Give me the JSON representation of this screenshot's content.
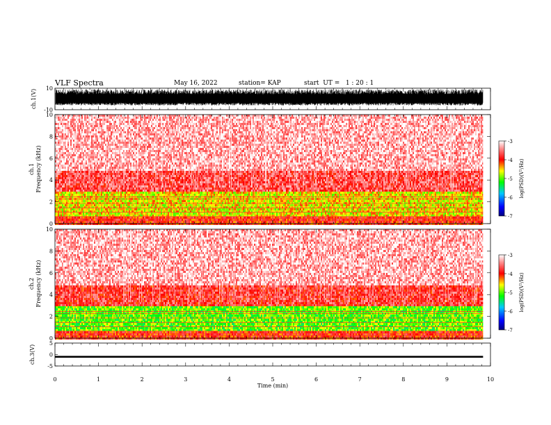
{
  "header": {
    "title": "VLF Spectra",
    "date": "May 16, 2022",
    "station": "station= KAP",
    "start": "start  UT =   1 : 20 : 1"
  },
  "chart_data": [
    {
      "type": "line",
      "name": "waveform-ch1",
      "ylabel": "ch.1(V)",
      "ylim": [
        -10,
        10
      ],
      "yticks": [
        "10",
        "-10"
      ],
      "xlim": [
        0,
        10
      ],
      "data_end_min": 9.83,
      "typical_range": [
        -6,
        9
      ]
    },
    {
      "type": "heatmap",
      "name": "spectrogram-ch1",
      "ylabel": "ch.1 Frequency (kHz)",
      "ylim": [
        0,
        10
      ],
      "yticks": [
        "0",
        "2",
        "4",
        "6",
        "8",
        "10"
      ],
      "xlim": [
        0,
        10
      ],
      "data_end_min": 9.83,
      "bands": [
        {
          "from_khz": 0,
          "to_khz": 0.8,
          "log_psd": -4.0
        },
        {
          "from_khz": 0.8,
          "to_khz": 3.0,
          "log_psd": -4.6
        },
        {
          "from_khz": 3.0,
          "to_khz": 5.0,
          "log_psd": -3.7
        },
        {
          "from_khz": 5.0,
          "to_khz": 10.0,
          "log_psd": -3.3
        }
      ],
      "colorbar": {
        "label": "log(PSD)(V²/Hz)",
        "ticks": [
          "-3",
          "-4",
          "-5",
          "-6",
          "-7"
        ],
        "range": [
          -7,
          -3
        ]
      }
    },
    {
      "type": "heatmap",
      "name": "spectrogram-ch2",
      "ylabel": "ch.2 Frequency (kHz)",
      "ylim": [
        0,
        10
      ],
      "yticks": [
        "0",
        "2",
        "4",
        "6",
        "8",
        "10"
      ],
      "xlim": [
        0,
        10
      ],
      "data_end_min": 9.83,
      "bands": [
        {
          "from_khz": 0,
          "to_khz": 0.8,
          "log_psd": -4.0
        },
        {
          "from_khz": 0.8,
          "to_khz": 3.0,
          "log_psd": -5.0
        },
        {
          "from_khz": 3.0,
          "to_khz": 5.0,
          "log_psd": -3.8
        },
        {
          "from_khz": 5.0,
          "to_khz": 10.0,
          "log_psd": -3.3
        }
      ],
      "colorbar": {
        "label": "log(PSD)(V²/Hz)",
        "ticks": [
          "-3",
          "-4",
          "-5",
          "-6",
          "-7"
        ],
        "range": [
          -7,
          -3
        ]
      }
    },
    {
      "type": "line",
      "name": "waveform-ch3",
      "ylabel": "ch.3(V)",
      "ylim": [
        -5,
        5
      ],
      "yticks": [
        "5",
        "0",
        "-5"
      ],
      "xlim": [
        0,
        10
      ],
      "xlabel": "Time  (min)",
      "xticks": [
        "0",
        "1",
        "2",
        "3",
        "4",
        "5",
        "6",
        "7",
        "8",
        "9",
        "10"
      ],
      "data_end_min": 9.83,
      "band_range": [
        -1.4,
        -0.6
      ]
    }
  ]
}
